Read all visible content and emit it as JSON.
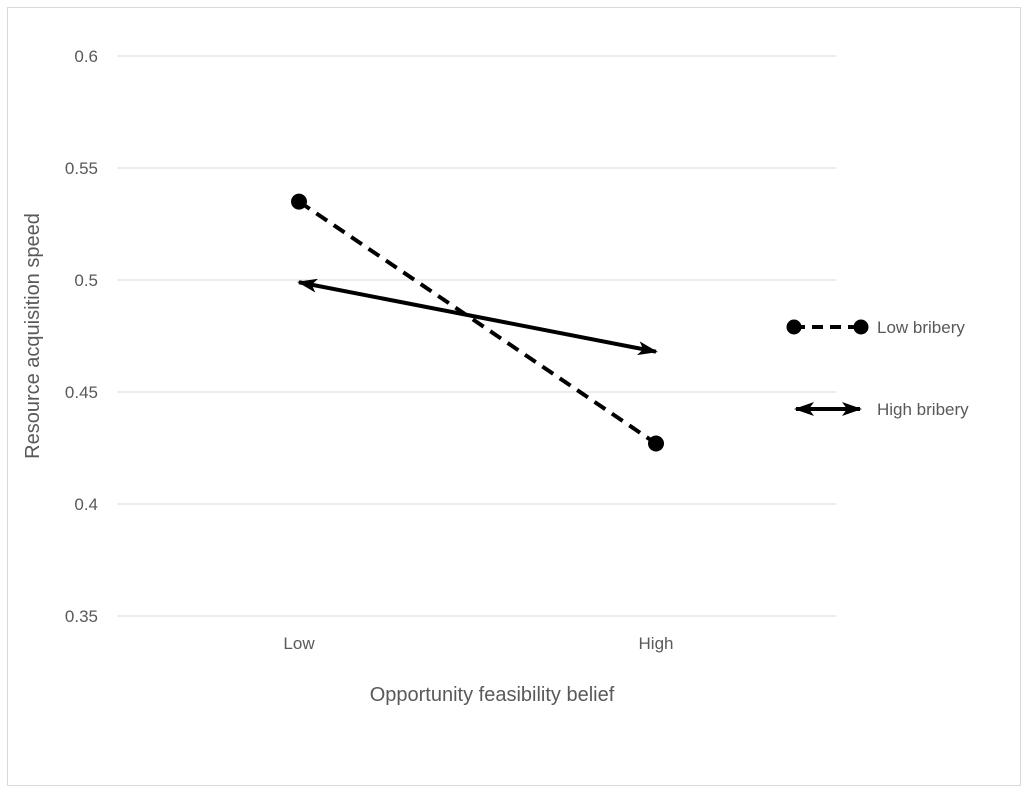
{
  "chart_data": {
    "type": "line",
    "title": "",
    "xlabel": "Opportunity feasibility belief",
    "ylabel": "Resource acquisition speed",
    "categories": [
      "Low",
      "High"
    ],
    "ylim": [
      0.35,
      0.6
    ],
    "yticks": [
      "0.35",
      "0.4",
      "0.45",
      "0.5",
      "0.55",
      "0.6"
    ],
    "grid": "horizontal",
    "legend_position": "right",
    "series": [
      {
        "name": "Low bribery",
        "values": [
          0.535,
          0.427
        ],
        "line_style": "dashed",
        "marker": "circle",
        "color": "#000000"
      },
      {
        "name": "High bribery",
        "values": [
          0.499,
          0.468
        ],
        "line_style": "solid",
        "marker": "arrow",
        "color": "#000000"
      }
    ],
    "colors": {
      "grid": "#d9d9d9",
      "text": "#595959",
      "series": "#000000"
    }
  }
}
